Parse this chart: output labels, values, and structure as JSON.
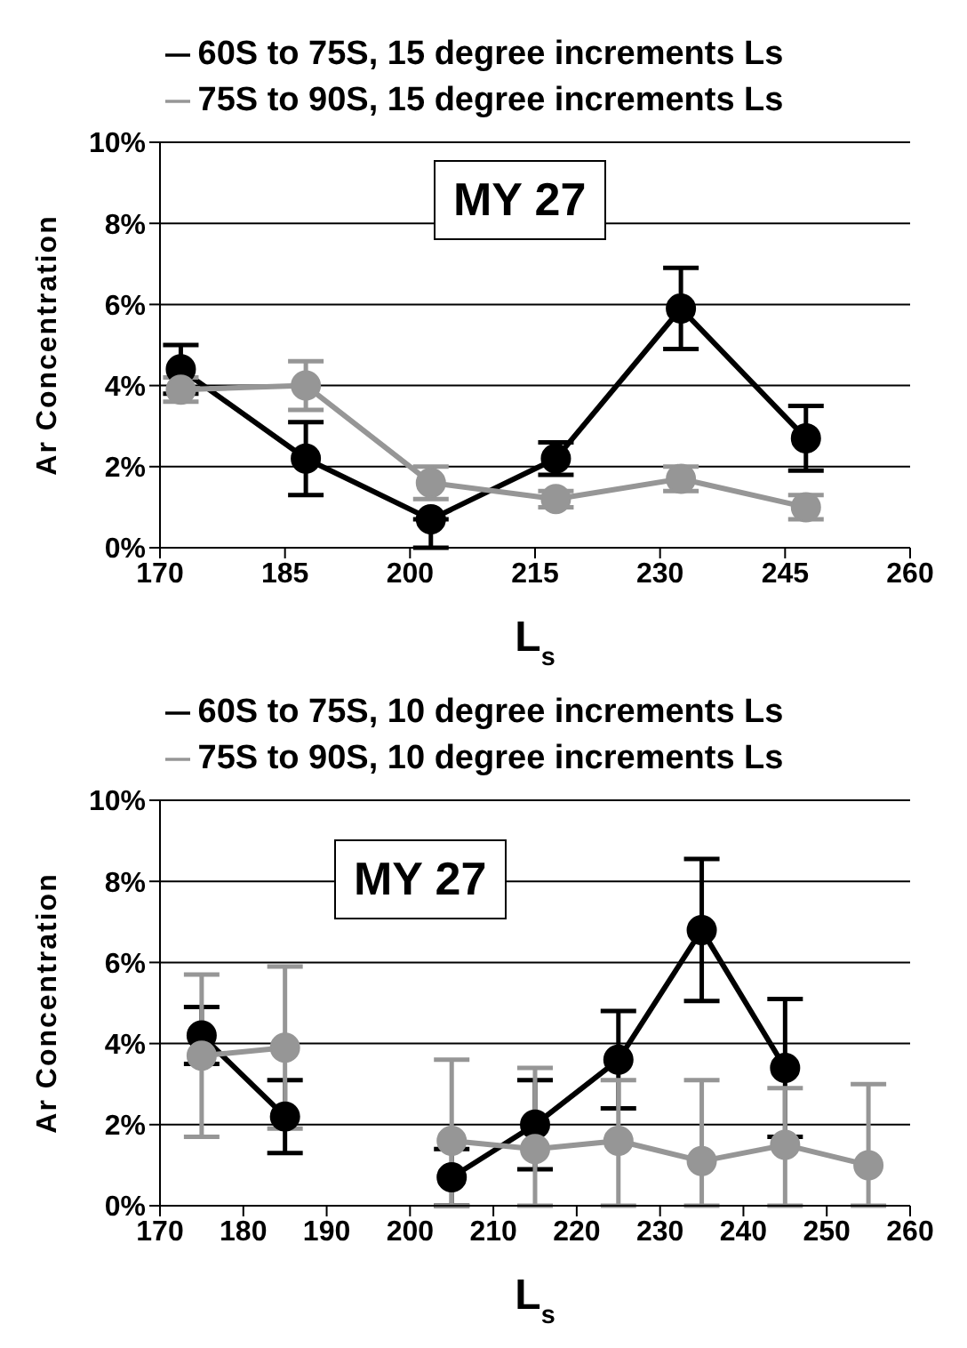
{
  "chart_data": [
    {
      "type": "line",
      "xlabel": "L$_{s}$",
      "ylabel": "Ar Concentration",
      "annotations": [
        "MY 27"
      ],
      "x": [
        172.5,
        187.5,
        202.5,
        217.5,
        232.5,
        247.5
      ],
      "xlim": [
        170,
        260
      ],
      "xticks": [
        170,
        185,
        200,
        215,
        230,
        245,
        260
      ],
      "ylim": [
        0,
        10
      ],
      "yticks": [
        {
          "value": 0,
          "label": "0%"
        },
        {
          "value": 2,
          "label": "2%"
        },
        {
          "value": 4,
          "label": "4%"
        },
        {
          "value": 6,
          "label": "6%"
        },
        {
          "value": 8,
          "label": "8%"
        },
        {
          "value": 10,
          "label": "10%"
        }
      ],
      "grid": "y",
      "legend": "top",
      "marker": "circle",
      "series": [
        {
          "name": "60S to 75S, 15 degree increments Ls",
          "color": "#000000",
          "values": [
            4.4,
            2.2,
            0.7,
            2.2,
            5.9,
            2.7
          ],
          "errors": [
            0.6,
            0.9,
            [
              0,
              0.7
            ],
            0.4,
            1.0,
            0.8
          ]
        },
        {
          "name": "75S to 90S, 15 degree increments Ls",
          "color": "#969696",
          "values": [
            3.9,
            4.0,
            1.6,
            1.2,
            1.7,
            1.0
          ],
          "errors": [
            0.3,
            0.6,
            0.4,
            0.2,
            0.3,
            0.3
          ]
        }
      ]
    },
    {
      "type": "line",
      "xlabel": "L$_{s}$",
      "ylabel": "Ar Concentration",
      "annotations": [
        "MY 27"
      ],
      "x": [
        175,
        185,
        195,
        205,
        215,
        225,
        235,
        245,
        255
      ],
      "xlim": [
        170,
        260
      ],
      "xticks": [
        170,
        180,
        190,
        200,
        210,
        220,
        230,
        240,
        250,
        260
      ],
      "ylim": [
        0,
        10
      ],
      "yticks": [
        {
          "value": 0,
          "label": "0%"
        },
        {
          "value": 2,
          "label": "2%"
        },
        {
          "value": 4,
          "label": "4%"
        },
        {
          "value": 6,
          "label": "6%"
        },
        {
          "value": 8,
          "label": "8%"
        },
        {
          "value": 10,
          "label": "10%"
        }
      ],
      "grid": "y",
      "legend": "top",
      "marker": "circle",
      "series": [
        {
          "name": "60S to 75S, 10 degree increments Ls",
          "color": "#000000",
          "values": [
            4.2,
            2.2,
            null,
            0.7,
            2.0,
            3.6,
            6.8,
            3.4,
            null
          ],
          "errors": [
            0.7,
            0.9,
            null,
            [
              0,
              1.4
            ],
            1.1,
            1.2,
            1.75,
            1.7,
            null
          ]
        },
        {
          "name": "75S to 90S, 10 degree increments Ls",
          "color": "#969696",
          "values": [
            3.7,
            3.9,
            null,
            1.6,
            1.4,
            1.6,
            1.1,
            1.5,
            1.0
          ],
          "errors": [
            2.0,
            2.0,
            null,
            [
              0,
              3.6
            ],
            [
              0,
              3.4
            ],
            [
              0,
              3.1
            ],
            [
              0,
              3.1
            ],
            [
              0,
              2.9
            ],
            [
              0,
              3.0
            ]
          ]
        }
      ]
    }
  ]
}
